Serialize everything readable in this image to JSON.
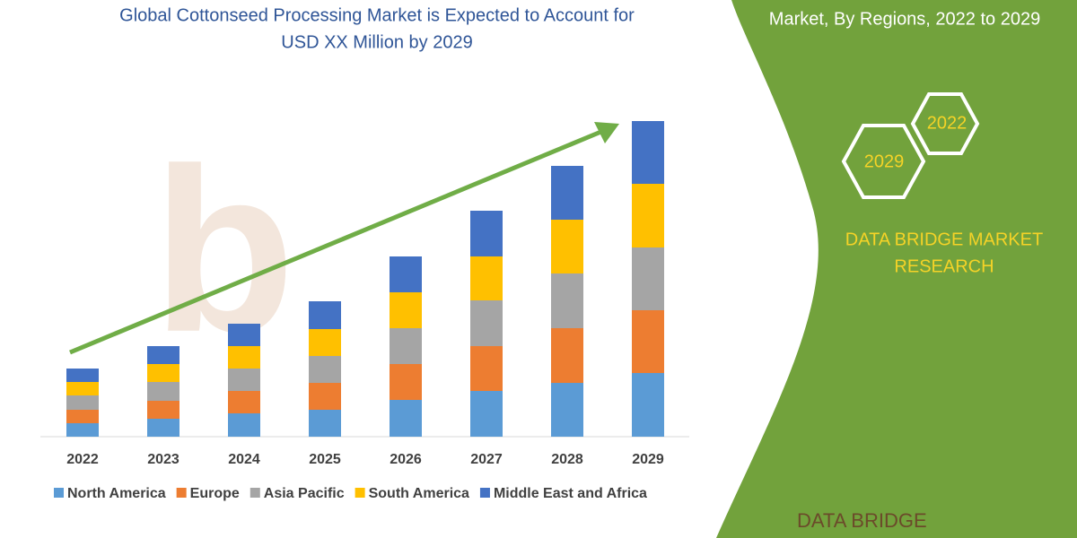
{
  "chart_data": {
    "type": "stacked_bar",
    "title_lines": [
      "Global Cottonseed Processing Market is Expected to Account for",
      "USD XX Million by 2029"
    ],
    "categories": [
      "2022",
      "2023",
      "2024",
      "2025",
      "2026",
      "2027",
      "2028",
      "2029"
    ],
    "series": [
      {
        "name": "North America",
        "color": "#5b9bd5",
        "values": [
          15,
          20,
          26,
          30,
          41,
          51,
          60,
          71
        ]
      },
      {
        "name": "Europe",
        "color": "#ed7d31",
        "values": [
          15,
          20,
          25,
          30,
          40,
          50,
          61,
          70
        ]
      },
      {
        "name": "Asia Pacific",
        "color": "#a5a5a5",
        "values": [
          16,
          21,
          25,
          30,
          40,
          51,
          61,
          70
        ]
      },
      {
        "name": "South America",
        "color": "#ffc000",
        "values": [
          15,
          20,
          25,
          30,
          40,
          49,
          60,
          71
        ]
      },
      {
        "name": "Middle East and Africa",
        "color": "#4472c4",
        "values": [
          15,
          20,
          25,
          31,
          40,
          51,
          60,
          70
        ]
      }
    ],
    "ylim": [
      0,
      360
    ]
  },
  "side_panel": {
    "title": "Market, By Regions, 2022 to 2029",
    "hex_labels": [
      "2022",
      "2029"
    ],
    "brand_lines": [
      "DATA BRIDGE MARKET",
      "RESEARCH"
    ],
    "logo": "DATA BRIDGE"
  }
}
